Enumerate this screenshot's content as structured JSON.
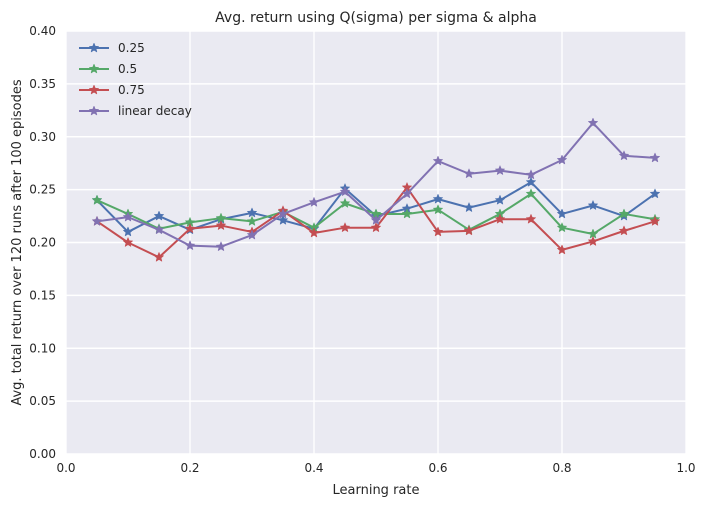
{
  "chart_data": {
    "type": "line",
    "title": "Avg. return using Q(sigma) per sigma & alpha",
    "xlabel": "Learning rate",
    "ylabel": "Avg. total return over 120 runs after 100 episodes",
    "xlim": [
      0.0,
      1.0
    ],
    "ylim": [
      0.0,
      0.4
    ],
    "xticks": [
      "0.0",
      "0.2",
      "0.4",
      "0.6",
      "0.8",
      "1.0"
    ],
    "yticks": [
      "0.00",
      "0.05",
      "0.10",
      "0.15",
      "0.20",
      "0.25",
      "0.30",
      "0.35",
      "0.40"
    ],
    "grid": true,
    "legend_position": "top-left",
    "marker": "star",
    "x": [
      0.05,
      0.1,
      0.15,
      0.2,
      0.25,
      0.3,
      0.35,
      0.4,
      0.45,
      0.5,
      0.55,
      0.6,
      0.65,
      0.7,
      0.75,
      0.8,
      0.85,
      0.9,
      0.95
    ],
    "series": [
      {
        "name": "0.25",
        "color": "#4c72b0",
        "values": [
          0.24,
          0.21,
          0.225,
          0.212,
          0.222,
          0.228,
          0.221,
          0.213,
          0.251,
          0.225,
          0.232,
          0.241,
          0.233,
          0.24,
          0.257,
          0.227,
          0.235,
          0.225,
          0.246
        ]
      },
      {
        "name": "0.5",
        "color": "#55a868",
        "values": [
          0.24,
          0.227,
          0.213,
          0.219,
          0.223,
          0.22,
          0.229,
          0.214,
          0.237,
          0.227,
          0.227,
          0.231,
          0.212,
          0.227,
          0.246,
          0.214,
          0.208,
          0.227,
          0.222
        ]
      },
      {
        "name": "0.75",
        "color": "#c44e52",
        "values": [
          0.22,
          0.2,
          0.186,
          0.213,
          0.216,
          0.21,
          0.23,
          0.209,
          0.214,
          0.214,
          0.252,
          0.21,
          0.211,
          0.222,
          0.222,
          0.193,
          0.201,
          0.211,
          0.22
        ]
      },
      {
        "name": "linear decay",
        "color": "#8172b2",
        "values": [
          0.22,
          0.224,
          0.212,
          0.197,
          0.196,
          0.207,
          0.227,
          0.238,
          0.248,
          0.221,
          0.246,
          0.277,
          0.265,
          0.268,
          0.264,
          0.278,
          0.313,
          0.282,
          0.28
        ]
      }
    ],
    "background_color": "#eaeaf2",
    "grid_color": "#ffffff"
  }
}
